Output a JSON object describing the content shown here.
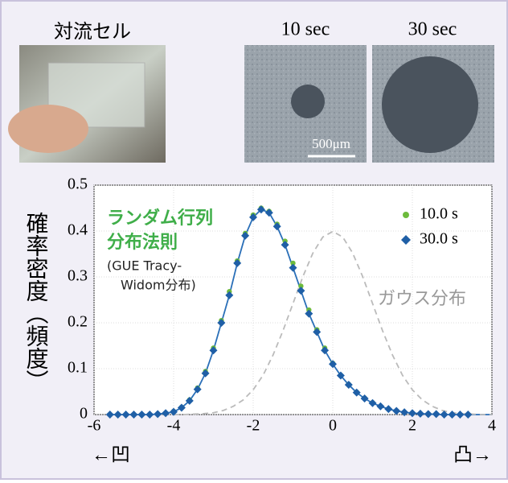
{
  "panels": {
    "cell_title": "対流セル",
    "micro_titles": [
      "10 sec",
      "30 sec"
    ],
    "scale_bar": "500μm"
  },
  "chart_data": {
    "type": "scatter",
    "ylabel": "確率密度（頻度）",
    "x_left_label": "←凹",
    "x_right_label": "凸→",
    "xlim": [
      -6,
      4
    ],
    "ylim": [
      0,
      0.5
    ],
    "xticks": [
      -6,
      -4,
      -2,
      0,
      2,
      4
    ],
    "yticks": [
      0,
      0.1,
      0.2,
      0.3,
      0.4,
      0.5
    ],
    "grid": true,
    "legend": "upper right",
    "series": [
      {
        "name": "10.0 s",
        "color": "#6dbb3c",
        "marker": "circle",
        "x": [
          -4.4,
          -4.2,
          -4.0,
          -3.8,
          -3.6,
          -3.4,
          -3.2,
          -3.0,
          -2.8,
          -2.6,
          -2.4,
          -2.2,
          -2.0,
          -1.8,
          -1.6,
          -1.4,
          -1.2,
          -1.0,
          -0.8,
          -0.6,
          -0.4,
          -0.2,
          0.0,
          0.2,
          0.4,
          0.6,
          0.8,
          1.0,
          1.2,
          1.4,
          1.6,
          1.8,
          2.0
        ],
        "values": [
          0.001,
          0.003,
          0.007,
          0.016,
          0.032,
          0.058,
          0.094,
          0.145,
          0.205,
          0.268,
          0.335,
          0.395,
          0.435,
          0.45,
          0.443,
          0.415,
          0.378,
          0.33,
          0.28,
          0.228,
          0.185,
          0.145,
          0.112,
          0.086,
          0.066,
          0.049,
          0.036,
          0.026,
          0.018,
          0.012,
          0.008,
          0.005,
          0.003
        ]
      },
      {
        "name": "30.0 s",
        "color": "#1f5fa6",
        "marker": "diamond",
        "x": [
          -5.6,
          -5.4,
          -5.2,
          -5.0,
          -4.8,
          -4.6,
          -4.4,
          -4.2,
          -4.0,
          -3.8,
          -3.6,
          -3.4,
          -3.2,
          -3.0,
          -2.8,
          -2.6,
          -2.4,
          -2.2,
          -2.0,
          -1.8,
          -1.6,
          -1.4,
          -1.2,
          -1.0,
          -0.8,
          -0.6,
          -0.4,
          -0.2,
          0.0,
          0.2,
          0.4,
          0.6,
          0.8,
          1.0,
          1.2,
          1.4,
          1.6,
          1.8,
          2.0,
          2.2,
          2.4,
          2.6,
          2.8,
          3.0,
          3.2,
          3.4
        ],
        "values": [
          0,
          0,
          0,
          0,
          0,
          0,
          0.001,
          0.003,
          0.006,
          0.015,
          0.03,
          0.055,
          0.09,
          0.14,
          0.2,
          0.26,
          0.33,
          0.39,
          0.43,
          0.447,
          0.44,
          0.41,
          0.37,
          0.32,
          0.27,
          0.22,
          0.18,
          0.14,
          0.11,
          0.085,
          0.065,
          0.048,
          0.035,
          0.025,
          0.018,
          0.012,
          0.008,
          0.005,
          0.003,
          0.002,
          0.001,
          0.001,
          0,
          0,
          0,
          0
        ]
      }
    ],
    "curves": [
      {
        "color": "#2a6fb8",
        "dashed": false,
        "x": [
          -5.6,
          -5.0,
          -4.6,
          -4.4,
          -4.2,
          -4.0,
          -3.8,
          -3.6,
          -3.4,
          -3.2,
          -3.0,
          -2.8,
          -2.6,
          -2.4,
          -2.2,
          -2.0,
          -1.8,
          -1.6,
          -1.4,
          -1.2,
          -1.0,
          -0.8,
          -0.6,
          -0.4,
          -0.2,
          0.0,
          0.2,
          0.4,
          0.6,
          0.8,
          1.0,
          1.2,
          1.4,
          1.6,
          1.8,
          2.0,
          2.4,
          2.8,
          3.4,
          4.0
        ],
        "values": [
          0,
          0,
          0,
          0.001,
          0.003,
          0.006,
          0.015,
          0.03,
          0.055,
          0.09,
          0.14,
          0.2,
          0.26,
          0.33,
          0.39,
          0.43,
          0.447,
          0.44,
          0.41,
          0.37,
          0.32,
          0.27,
          0.22,
          0.18,
          0.14,
          0.11,
          0.085,
          0.065,
          0.048,
          0.035,
          0.025,
          0.018,
          0.012,
          0.008,
          0.005,
          0.003,
          0.001,
          0,
          0,
          0
        ]
      },
      {
        "color": "#bbbbbb",
        "dashed": true,
        "x": [
          -4,
          -3.75,
          -3.5,
          -3.25,
          -3,
          -2.75,
          -2.5,
          -2.25,
          -2,
          -1.75,
          -1.5,
          -1.25,
          -1,
          -0.75,
          -0.5,
          -0.25,
          0,
          0.25,
          0.5,
          0.75,
          1,
          1.25,
          1.5,
          1.75,
          2,
          2.25,
          2.5,
          2.75,
          3,
          3.25,
          3.5,
          3.75,
          4
        ],
        "values": [
          0,
          0,
          0.001,
          0.002,
          0.004,
          0.009,
          0.018,
          0.032,
          0.054,
          0.086,
          0.13,
          0.183,
          0.242,
          0.301,
          0.352,
          0.387,
          0.399,
          0.387,
          0.352,
          0.301,
          0.242,
          0.183,
          0.13,
          0.086,
          0.054,
          0.032,
          0.018,
          0.009,
          0.004,
          0.002,
          0.001,
          0,
          0
        ]
      }
    ],
    "annotations": [
      {
        "text": "ランダム行列",
        "color": "#3fae49"
      },
      {
        "text": "分布法則",
        "color": "#3fae49"
      },
      {
        "text": "(GUE Tracy-",
        "color": "#222222"
      },
      {
        "text": "Widom分布)",
        "color": "#222222"
      },
      {
        "text": "ガウス分布",
        "color": "#999999"
      }
    ]
  }
}
